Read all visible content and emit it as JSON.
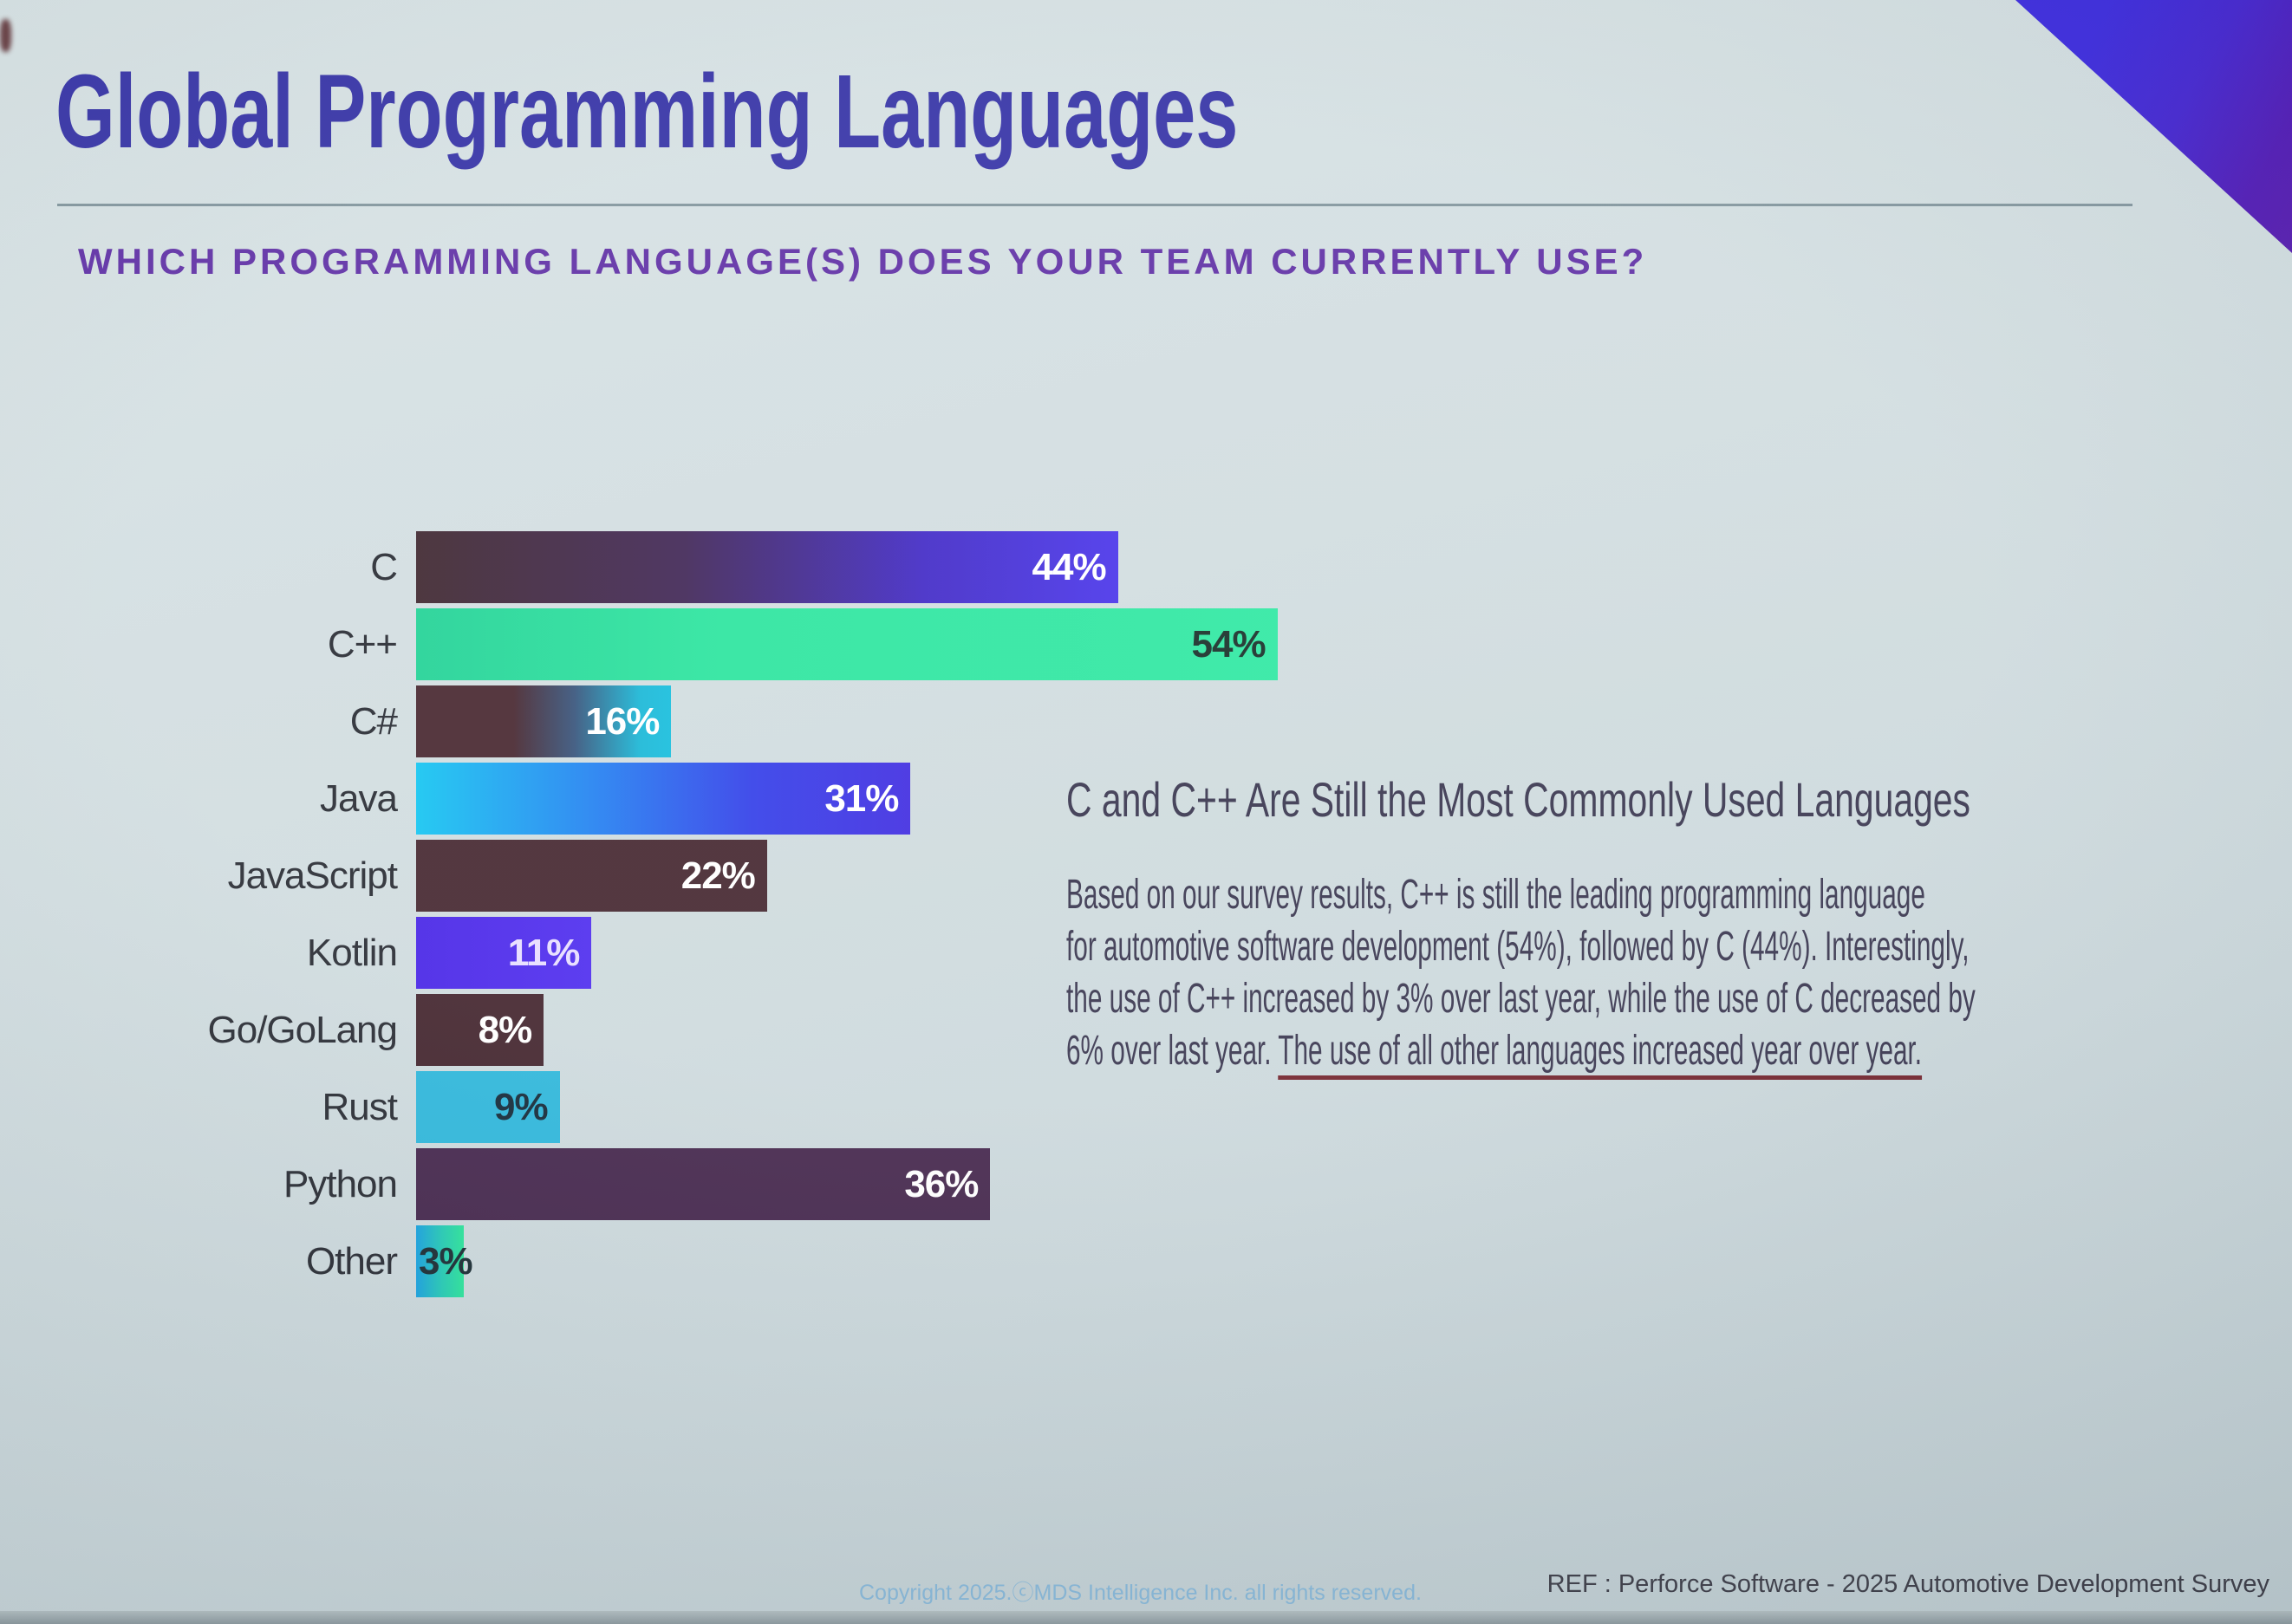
{
  "slide": {
    "title": "Global Programming Languages",
    "subtitle": "WHICH PROGRAMMING LANGUAGE(S) DOES YOUR TEAM CURRENTLY USE?",
    "footer": {
      "copyright": "Copyright 2025.ⓒMDS Intelligence Inc. all rights reserved.",
      "reference": "REF : Perforce Software - 2025 Automotive Development Survey"
    },
    "colors": {
      "background": "#cfdcdf",
      "title": "#302da4",
      "subtitle": "#5b2aa3",
      "rule": "#7e929a",
      "category_label": "#23262e",
      "insight_text": "#34314b",
      "underline": "#6f1e27",
      "footer_copyright": "#87b8da",
      "footer_reference": "#3b3b46",
      "corner_triangle": [
        "#3523dd",
        "#4b12b3"
      ]
    }
  },
  "chart_data": {
    "type": "bar",
    "orientation": "horizontal",
    "title": "Global Programming Languages",
    "xlabel": "",
    "ylabel": "",
    "unit": "%",
    "xlim": [
      0,
      60
    ],
    "grid": false,
    "legend": false,
    "categories": [
      "C",
      "C++",
      "C#",
      "Java",
      "JavaScript",
      "Kotlin",
      "Go/GoLang",
      "Rust",
      "Python",
      "Other"
    ],
    "values": [
      44,
      54,
      16,
      31,
      22,
      11,
      8,
      9,
      36,
      3
    ],
    "value_labels": [
      "44%",
      "54%",
      "16%",
      "31%",
      "22%",
      "11%",
      "8%",
      "9%",
      "36%",
      "3%"
    ],
    "bar_styles": [
      "linear-gradient(90deg,#3a222a 0%,#3c2152 38%,#3d25c4 72%,#4530ea 100%)",
      "linear-gradient(90deg,#1cd193 0%,#27e49c 35%,#2be8a0 100%)",
      "linear-gradient(90deg,#43212a 0%,#43212a 38%,#335078 62%,#14b6d6 88%,#12bcdc 100%)",
      "linear-gradient(90deg,#0fc4f0 0%,#1e7af0 38%,#2e3ae8 68%,#3c28e0 100%)",
      "#41222b",
      "linear-gradient(90deg,#431fe6 0%,#4b28ee 100%)",
      "#3e1f28",
      "#29b5da",
      "#402148",
      "linear-gradient(90deg,#129ede 0%,#1fc9b2 55%,#26e396 100%)"
    ],
    "value_label_colors": [
      "#ffffff",
      "#122a24",
      "#ffffff",
      "#ffffff",
      "#ffffff",
      "#e7ddff",
      "#ffffff",
      "#0e2433",
      "#ffffff",
      "#14262e"
    ],
    "value_label_position": [
      "inside-right",
      "inside-right",
      "inside-right",
      "inside-right",
      "inside-right",
      "inside-right",
      "inside-right",
      "inside-right",
      "inside-right",
      "overlay-left"
    ]
  },
  "insight": {
    "heading": "C and C++ Are Still the Most Commonly Used Languages",
    "lines": [
      "Based on our survey results, C++ is still the leading programming language",
      "for automotive software development (54%), followed by C (44%). Interestingly,",
      "the use of C++ increased by 3% over last year, while the use of C decreased by"
    ],
    "last_line_plain": "6% over last year. ",
    "last_line_underlined": "The use of all other languages increased year over year."
  }
}
